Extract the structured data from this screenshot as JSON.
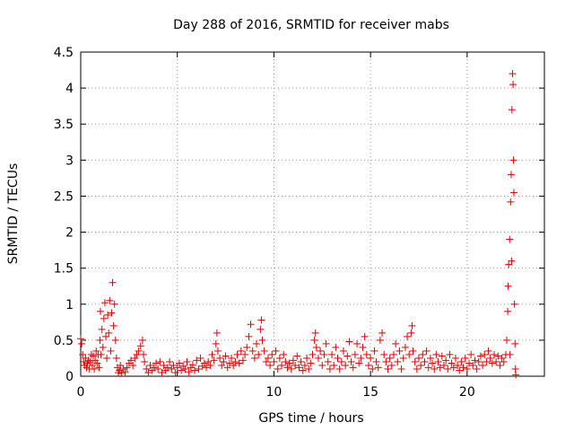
{
  "chart_data": {
    "type": "scatter",
    "title": "Day 288 of 2016, SRMTID for receiver mabs",
    "xlabel": "GPS time / hours",
    "ylabel": "SRMTID / TECUs",
    "xlim": [
      0,
      24
    ],
    "ylim": [
      0,
      4.5
    ],
    "xticks": [
      "0",
      "5",
      "10",
      "15",
      "20"
    ],
    "yticks": [
      "0",
      "0.5",
      "1",
      "1.5",
      "2",
      "2.5",
      "3",
      "3.5",
      "4",
      "4.5"
    ],
    "grid": true,
    "legend": "none",
    "marker": "plus",
    "series": [
      {
        "color": "#e00000",
        "points": [
          [
            0.0,
            0.52
          ],
          [
            0.05,
            0.45
          ],
          [
            0.1,
            0.3
          ],
          [
            0.15,
            0.2
          ],
          [
            0.2,
            0.15
          ],
          [
            0.25,
            0.25
          ],
          [
            0.3,
            0.12
          ],
          [
            0.35,
            0.18
          ],
          [
            0.4,
            0.22
          ],
          [
            0.45,
            0.1
          ],
          [
            0.5,
            0.2
          ],
          [
            0.55,
            0.3
          ],
          [
            0.6,
            0.15
          ],
          [
            0.65,
            0.28
          ],
          [
            0.7,
            0.1
          ],
          [
            0.75,
            0.22
          ],
          [
            0.8,
            0.35
          ],
          [
            0.85,
            0.18
          ],
          [
            0.9,
            0.3
          ],
          [
            0.95,
            0.12
          ],
          [
            1.0,
            0.5
          ],
          [
            1.02,
            0.9
          ],
          [
            1.05,
            0.3
          ],
          [
            1.1,
            0.65
          ],
          [
            1.15,
            0.4
          ],
          [
            1.2,
            0.8
          ],
          [
            1.25,
            1.02
          ],
          [
            1.3,
            0.55
          ],
          [
            1.35,
            0.25
          ],
          [
            1.4,
            0.85
          ],
          [
            1.45,
            0.6
          ],
          [
            1.5,
            1.05
          ],
          [
            1.55,
            0.35
          ],
          [
            1.6,
            0.88
          ],
          [
            1.65,
            1.3
          ],
          [
            1.7,
            0.7
          ],
          [
            1.75,
            1.0
          ],
          [
            1.8,
            0.5
          ],
          [
            1.85,
            0.25
          ],
          [
            1.9,
            0.12
          ],
          [
            1.95,
            0.05
          ],
          [
            2.0,
            0.08
          ],
          [
            2.05,
            0.15
          ],
          [
            2.1,
            0.04
          ],
          [
            2.2,
            0.1
          ],
          [
            2.3,
            0.06
          ],
          [
            2.4,
            0.12
          ],
          [
            2.5,
            0.18
          ],
          [
            2.6,
            0.22
          ],
          [
            2.7,
            0.15
          ],
          [
            2.8,
            0.25
          ],
          [
            2.9,
            0.3
          ],
          [
            3.0,
            0.35
          ],
          [
            3.1,
            0.42
          ],
          [
            3.2,
            0.5
          ],
          [
            3.25,
            0.3
          ],
          [
            3.3,
            0.2
          ],
          [
            3.4,
            0.1
          ],
          [
            3.5,
            0.05
          ],
          [
            3.6,
            0.15
          ],
          [
            3.7,
            0.08
          ],
          [
            3.8,
            0.12
          ],
          [
            3.9,
            0.18
          ],
          [
            4.0,
            0.1
          ],
          [
            4.1,
            0.2
          ],
          [
            4.2,
            0.05
          ],
          [
            4.3,
            0.15
          ],
          [
            4.4,
            0.08
          ],
          [
            4.5,
            0.12
          ],
          [
            4.6,
            0.2
          ],
          [
            4.7,
            0.1
          ],
          [
            4.8,
            0.15
          ],
          [
            4.9,
            0.05
          ],
          [
            5.0,
            0.12
          ],
          [
            5.1,
            0.18
          ],
          [
            5.2,
            0.08
          ],
          [
            5.3,
            0.14
          ],
          [
            5.4,
            0.1
          ],
          [
            5.5,
            0.2
          ],
          [
            5.6,
            0.06
          ],
          [
            5.7,
            0.12
          ],
          [
            5.8,
            0.16
          ],
          [
            5.9,
            0.08
          ],
          [
            6.0,
            0.22
          ],
          [
            6.1,
            0.1
          ],
          [
            6.2,
            0.25
          ],
          [
            6.3,
            0.14
          ],
          [
            6.4,
            0.18
          ],
          [
            6.5,
            0.12
          ],
          [
            6.6,
            0.2
          ],
          [
            6.7,
            0.15
          ],
          [
            6.8,
            0.3
          ],
          [
            6.9,
            0.22
          ],
          [
            7.0,
            0.45
          ],
          [
            7.05,
            0.6
          ],
          [
            7.1,
            0.35
          ],
          [
            7.2,
            0.25
          ],
          [
            7.3,
            0.15
          ],
          [
            7.4,
            0.2
          ],
          [
            7.5,
            0.28
          ],
          [
            7.6,
            0.12
          ],
          [
            7.7,
            0.18
          ],
          [
            7.8,
            0.25
          ],
          [
            7.9,
            0.15
          ],
          [
            8.0,
            0.2
          ],
          [
            8.1,
            0.3
          ],
          [
            8.2,
            0.18
          ],
          [
            8.3,
            0.35
          ],
          [
            8.4,
            0.22
          ],
          [
            8.5,
            0.3
          ],
          [
            8.6,
            0.4
          ],
          [
            8.7,
            0.55
          ],
          [
            8.8,
            0.72
          ],
          [
            8.9,
            0.35
          ],
          [
            9.0,
            0.25
          ],
          [
            9.1,
            0.45
          ],
          [
            9.2,
            0.3
          ],
          [
            9.3,
            0.65
          ],
          [
            9.35,
            0.78
          ],
          [
            9.4,
            0.5
          ],
          [
            9.5,
            0.35
          ],
          [
            9.6,
            0.2
          ],
          [
            9.7,
            0.25
          ],
          [
            9.8,
            0.15
          ],
          [
            9.9,
            0.3
          ],
          [
            10.0,
            0.2
          ],
          [
            10.1,
            0.35
          ],
          [
            10.2,
            0.1
          ],
          [
            10.3,
            0.25
          ],
          [
            10.4,
            0.15
          ],
          [
            10.5,
            0.3
          ],
          [
            10.6,
            0.2
          ],
          [
            10.7,
            0.12
          ],
          [
            10.8,
            0.18
          ],
          [
            10.9,
            0.1
          ],
          [
            11.0,
            0.22
          ],
          [
            11.1,
            0.15
          ],
          [
            11.2,
            0.28
          ],
          [
            11.3,
            0.12
          ],
          [
            11.4,
            0.2
          ],
          [
            11.5,
            0.08
          ],
          [
            11.6,
            0.15
          ],
          [
            11.7,
            0.25
          ],
          [
            11.8,
            0.1
          ],
          [
            11.9,
            0.18
          ],
          [
            12.0,
            0.3
          ],
          [
            12.1,
            0.5
          ],
          [
            12.15,
            0.6
          ],
          [
            12.2,
            0.4
          ],
          [
            12.3,
            0.25
          ],
          [
            12.4,
            0.35
          ],
          [
            12.5,
            0.15
          ],
          [
            12.6,
            0.3
          ],
          [
            12.7,
            0.45
          ],
          [
            12.8,
            0.2
          ],
          [
            12.9,
            0.1
          ],
          [
            13.0,
            0.3
          ],
          [
            13.1,
            0.15
          ],
          [
            13.2,
            0.4
          ],
          [
            13.3,
            0.25
          ],
          [
            13.4,
            0.1
          ],
          [
            13.5,
            0.2
          ],
          [
            13.6,
            0.35
          ],
          [
            13.7,
            0.15
          ],
          [
            13.8,
            0.28
          ],
          [
            13.9,
            0.48
          ],
          [
            14.0,
            0.2
          ],
          [
            14.1,
            0.12
          ],
          [
            14.2,
            0.3
          ],
          [
            14.3,
            0.45
          ],
          [
            14.4,
            0.18
          ],
          [
            14.5,
            0.25
          ],
          [
            14.6,
            0.4
          ],
          [
            14.7,
            0.55
          ],
          [
            14.8,
            0.3
          ],
          [
            14.9,
            0.15
          ],
          [
            15.0,
            0.25
          ],
          [
            15.1,
            0.1
          ],
          [
            15.2,
            0.35
          ],
          [
            15.3,
            0.2
          ],
          [
            15.4,
            0.12
          ],
          [
            15.5,
            0.5
          ],
          [
            15.6,
            0.6
          ],
          [
            15.7,
            0.3
          ],
          [
            15.8,
            0.2
          ],
          [
            15.9,
            0.1
          ],
          [
            16.0,
            0.25
          ],
          [
            16.1,
            0.15
          ],
          [
            16.2,
            0.3
          ],
          [
            16.3,
            0.45
          ],
          [
            16.4,
            0.2
          ],
          [
            16.5,
            0.35
          ],
          [
            16.6,
            0.1
          ],
          [
            16.7,
            0.25
          ],
          [
            16.8,
            0.4
          ],
          [
            16.9,
            0.55
          ],
          [
            17.0,
            0.3
          ],
          [
            17.1,
            0.6
          ],
          [
            17.15,
            0.7
          ],
          [
            17.2,
            0.35
          ],
          [
            17.3,
            0.2
          ],
          [
            17.4,
            0.1
          ],
          [
            17.5,
            0.25
          ],
          [
            17.6,
            0.15
          ],
          [
            17.7,
            0.3
          ],
          [
            17.8,
            0.2
          ],
          [
            17.9,
            0.35
          ],
          [
            18.0,
            0.12
          ],
          [
            18.1,
            0.25
          ],
          [
            18.2,
            0.18
          ],
          [
            18.3,
            0.1
          ],
          [
            18.4,
            0.3
          ],
          [
            18.5,
            0.2
          ],
          [
            18.6,
            0.12
          ],
          [
            18.7,
            0.28
          ],
          [
            18.8,
            0.15
          ],
          [
            18.9,
            0.22
          ],
          [
            19.0,
            0.1
          ],
          [
            19.1,
            0.3
          ],
          [
            19.2,
            0.18
          ],
          [
            19.3,
            0.12
          ],
          [
            19.4,
            0.25
          ],
          [
            19.5,
            0.15
          ],
          [
            19.6,
            0.08
          ],
          [
            19.7,
            0.2
          ],
          [
            19.8,
            0.12
          ],
          [
            19.9,
            0.25
          ],
          [
            20.0,
            0.1
          ],
          [
            20.1,
            0.18
          ],
          [
            20.2,
            0.3
          ],
          [
            20.3,
            0.15
          ],
          [
            20.4,
            0.22
          ],
          [
            20.5,
            0.1
          ],
          [
            20.6,
            0.2
          ],
          [
            20.7,
            0.28
          ],
          [
            20.8,
            0.15
          ],
          [
            20.9,
            0.3
          ],
          [
            21.0,
            0.2
          ],
          [
            21.1,
            0.35
          ],
          [
            21.2,
            0.25
          ],
          [
            21.3,
            0.18
          ],
          [
            21.4,
            0.3
          ],
          [
            21.5,
            0.2
          ],
          [
            21.6,
            0.28
          ],
          [
            21.7,
            0.15
          ],
          [
            21.8,
            0.25
          ],
          [
            21.9,
            0.2
          ],
          [
            22.0,
            0.3
          ],
          [
            22.05,
            0.5
          ],
          [
            22.1,
            0.9
          ],
          [
            22.12,
            1.25
          ],
          [
            22.15,
            1.55
          ],
          [
            22.2,
            1.9
          ],
          [
            22.22,
            0.3
          ],
          [
            22.25,
            2.42
          ],
          [
            22.28,
            2.8
          ],
          [
            22.3,
            1.6
          ],
          [
            22.32,
            3.7
          ],
          [
            22.35,
            4.2
          ],
          [
            22.38,
            4.05
          ],
          [
            22.4,
            3.0
          ],
          [
            22.42,
            2.55
          ],
          [
            22.45,
            1.0
          ],
          [
            22.48,
            0.45
          ],
          [
            22.5,
            0.1
          ],
          [
            22.52,
            0.02
          ]
        ]
      }
    ]
  }
}
